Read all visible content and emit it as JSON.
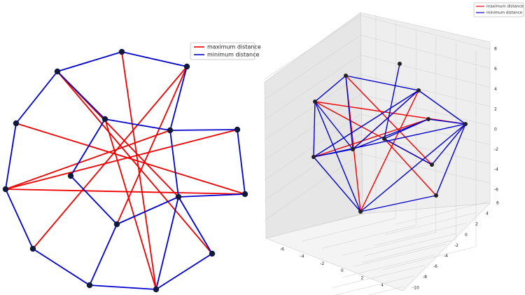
{
  "left_legend": {
    "items": [
      "maximum distance",
      "minimum distance"
    ]
  },
  "right_legend": {
    "items": [
      "maximum distance",
      "minimum distance"
    ]
  },
  "axes3d": {
    "xticks": [
      -6,
      -4,
      -2,
      0,
      2,
      4
    ],
    "yticks": [
      6,
      4,
      2,
      0,
      -2,
      -4,
      -6,
      -8,
      -10
    ],
    "zticks": [
      8,
      6,
      4,
      2,
      0,
      -2,
      -4,
      -6
    ]
  }
}
